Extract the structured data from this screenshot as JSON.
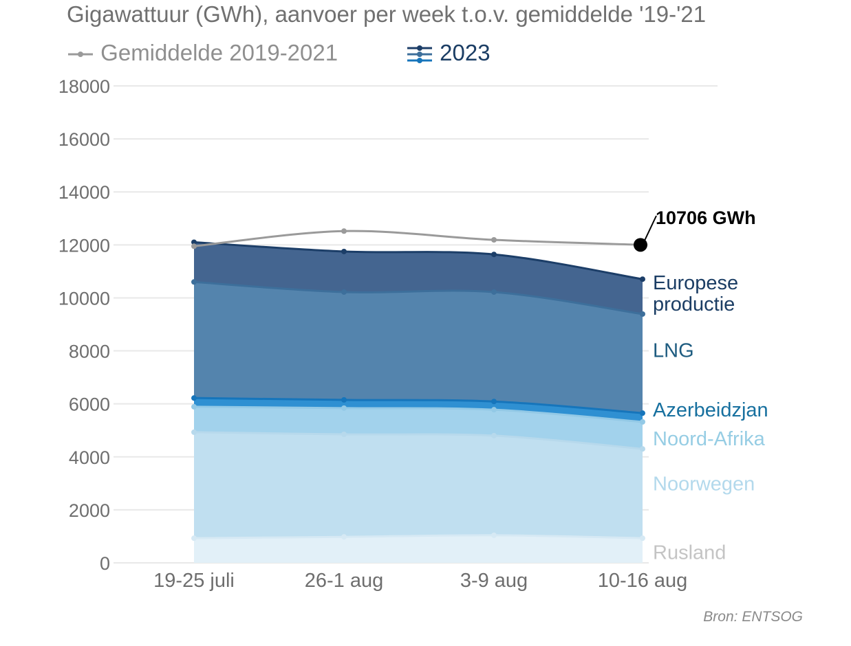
{
  "title": "Gigawattuur (GWh), aanvoer per week t.o.v. gemiddelde '19-'21",
  "legend": {
    "avg_label": "Gemiddelde 2019-2021",
    "current_label": "2023"
  },
  "source": "Bron: ENTSOG",
  "annotation": "10706 GWh",
  "chart_data": {
    "type": "area",
    "stacked": true,
    "title": "Gigawattuur (GWh), aanvoer per week t.o.v. gemiddelde '19-'21",
    "categories": [
      "19-25 juli",
      "26-1 aug",
      "3-9 aug",
      "10-16 aug"
    ],
    "ylim": [
      0,
      18000
    ],
    "yticks": [
      "0",
      "2000",
      "4000",
      "6000",
      "8000",
      "10000",
      "12000",
      "14000",
      "16000",
      "18000"
    ],
    "grid": true,
    "series_cumulative_note": "values are cumulative stack tops",
    "series": [
      {
        "name": "Rusland",
        "values": [
          930,
          980,
          1040,
          930
        ],
        "color": "#e2f0f8",
        "line": "#d6e9f4",
        "label_color": "#c4c4c4",
        "label_lines": [
          "Rusland"
        ]
      },
      {
        "name": "Noorwegen",
        "values": [
          4930,
          4850,
          4800,
          4300
        ],
        "color": "#c0dff0",
        "line": "#b7d9ec",
        "label_color": "#b3d9ec",
        "label_lines": [
          "Noorwegen"
        ]
      },
      {
        "name": "Noord-Afrika",
        "values": [
          5890,
          5840,
          5780,
          5320
        ],
        "color": "#a2d2ec",
        "line": "#93c9e6",
        "label_color": "#96cde4",
        "label_lines": [
          "Noord-Afrika"
        ]
      },
      {
        "name": "Azerbeidzjan",
        "values": [
          6220,
          6150,
          6090,
          5650
        ],
        "color": "#2f90d2",
        "line": "#1675bb",
        "label_color": "#17709f",
        "label_lines": [
          "Azerbeidzjan"
        ]
      },
      {
        "name": "LNG",
        "values": [
          10600,
          10220,
          10220,
          9390
        ],
        "color": "#5484ad",
        "line": "#3d6f9b",
        "label_color": "#1e5c80",
        "label_lines": [
          "LNG"
        ]
      },
      {
        "name": "Europese productie",
        "values": [
          12100,
          11750,
          11640,
          10706
        ],
        "color": "#446590",
        "line": "#1c3e68",
        "label_color": "#1b3d64",
        "label_lines": [
          "Europese",
          "productie"
        ]
      }
    ],
    "average": {
      "name": "Gemiddelde 2019-2021",
      "values": [
        11950,
        12520,
        12190,
        12000
      ],
      "color": "#9a9a9a"
    }
  }
}
